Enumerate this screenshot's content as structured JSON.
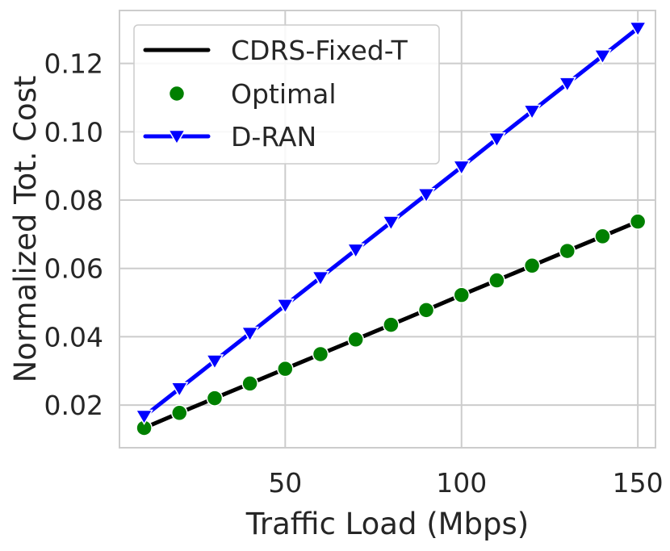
{
  "chart_data": {
    "type": "line",
    "xlabel": "Traffic Load (Mbps)",
    "ylabel": "Normalized Tot. Cost",
    "xlim": [
      3,
      155
    ],
    "ylim": [
      0.0075,
      0.1355
    ],
    "xticks": [
      50,
      100,
      150
    ],
    "xtick_labels": [
      "50",
      "100",
      "150"
    ],
    "yticks": [
      0.02,
      0.04,
      0.06,
      0.08,
      0.1,
      0.12
    ],
    "ytick_labels": [
      "0.02",
      "0.04",
      "0.06",
      "0.08",
      "0.10",
      "0.12"
    ],
    "grid": true,
    "legend_position": "top-left",
    "x": [
      10,
      20,
      30,
      40,
      50,
      60,
      70,
      80,
      90,
      100,
      110,
      120,
      130,
      140,
      150
    ],
    "series": [
      {
        "name": "CDRS-Fixed-T",
        "style": "line",
        "color": "#000000",
        "values": [
          0.0133,
          0.0177,
          0.022,
          0.0263,
          0.0306,
          0.0349,
          0.0392,
          0.0435,
          0.0478,
          0.0522,
          0.0565,
          0.0608,
          0.0651,
          0.0694,
          0.0737
        ]
      },
      {
        "name": "Optimal",
        "style": "marker",
        "marker": "circle",
        "color": "#008000",
        "values": [
          0.0133,
          0.0177,
          0.022,
          0.0263,
          0.0306,
          0.0349,
          0.0392,
          0.0435,
          0.0478,
          0.0522,
          0.0565,
          0.0608,
          0.0651,
          0.0694,
          0.0737
        ]
      },
      {
        "name": "D-RAN",
        "style": "line-marker",
        "marker": "triangle-down",
        "color": "#0000ff",
        "values": [
          0.0167,
          0.0248,
          0.0329,
          0.041,
          0.0492,
          0.0573,
          0.0654,
          0.0735,
          0.0816,
          0.0897,
          0.0979,
          0.106,
          0.1141,
          0.1222,
          0.1303
        ]
      }
    ]
  }
}
